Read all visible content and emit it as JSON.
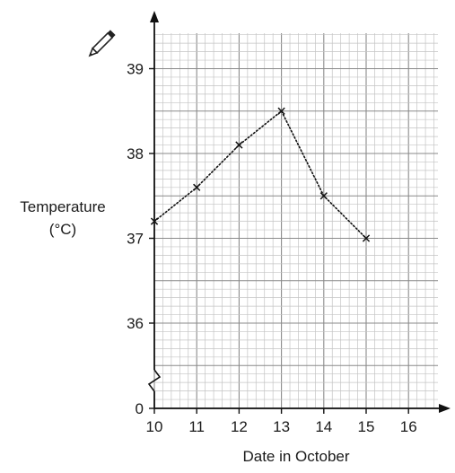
{
  "chart_data": {
    "type": "line",
    "xlabel": "Date in October",
    "ylabel_line1": "Temperature",
    "ylabel_line2": "(°C)",
    "x_ticks": [
      10,
      11,
      12,
      13,
      14,
      15,
      16
    ],
    "y_ticks": [
      0,
      36,
      37,
      38,
      39
    ],
    "y_axis_break": true,
    "y_axis_break_between": [
      0,
      36
    ],
    "xlim": [
      10,
      16.7
    ],
    "ylim_visible": [
      35.0,
      39.45
    ],
    "grid": true,
    "line_style": "dotted",
    "marker": "x",
    "series": [
      {
        "x": [
          10,
          11,
          12,
          13,
          14,
          15
        ],
        "y": [
          37.2,
          37.6,
          38.1,
          38.5,
          37.5,
          37.0
        ]
      }
    ]
  },
  "decoration": {
    "pencil_icon": "pencil-icon"
  }
}
